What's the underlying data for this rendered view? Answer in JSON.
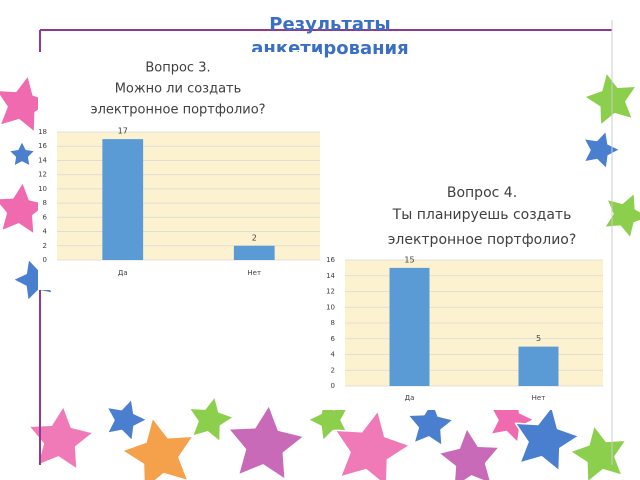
{
  "title": [
    "Результаты",
    "анкетирования"
  ],
  "chart_data": [
    {
      "type": "bar",
      "title": [
        "Вопрос 3.",
        "Можно ли создать",
        "электронное портфолио?"
      ],
      "categories": [
        "Да",
        "Нет"
      ],
      "values": [
        17,
        2
      ],
      "color": "#5b9bd5",
      "ylim": [
        0,
        18
      ],
      "yticks": [
        0,
        2,
        4,
        6,
        8,
        10,
        12,
        14,
        16,
        18
      ],
      "grid": true
    },
    {
      "type": "bar",
      "title": [
        "Вопрос 4.",
        "Ты планируешь создать",
        "электронное портфолио?"
      ],
      "categories": [
        "Да",
        "Нет"
      ],
      "values": [
        15,
        5
      ],
      "color": "#5b9bd5",
      "ylim": [
        0,
        16
      ],
      "yticks": [
        0,
        2,
        4,
        6,
        8,
        10,
        12,
        14,
        16
      ],
      "grid": true
    }
  ]
}
